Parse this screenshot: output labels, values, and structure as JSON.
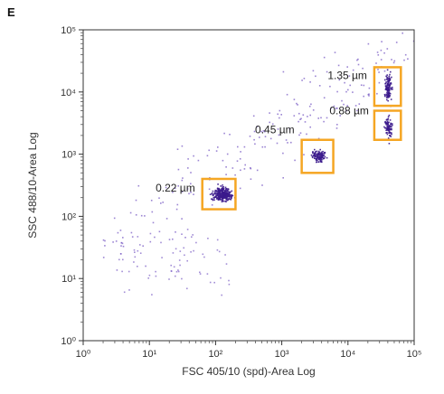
{
  "panel_label": "E",
  "chart_data": {
    "type": "scatter",
    "title": "",
    "xlabel": "FSC 405/10 (spd)-Area Log",
    "ylabel": "SSC 488/10-Area Log",
    "xscale": "log",
    "yscale": "log",
    "xlim": [
      1,
      100000
    ],
    "ylim": [
      1,
      100000
    ],
    "x_ticks": [
      {
        "value": 1,
        "label": "10⁰"
      },
      {
        "value": 10,
        "label": "10¹"
      },
      {
        "value": 100,
        "label": "10²"
      },
      {
        "value": 1000,
        "label": "10³"
      },
      {
        "value": 10000,
        "label": "10⁴"
      },
      {
        "value": 100000,
        "label": "10⁵"
      }
    ],
    "y_ticks": [
      {
        "value": 1,
        "label": "10⁰"
      },
      {
        "value": 10,
        "label": "10¹"
      },
      {
        "value": 100,
        "label": "10²"
      },
      {
        "value": 1000,
        "label": "10³"
      },
      {
        "value": 10000,
        "label": "10⁴"
      },
      {
        "value": 100000,
        "label": "10⁵"
      }
    ],
    "grid": false,
    "colors": {
      "points": "#7a5cc4",
      "dense": "#3b1a8c",
      "gate": "#f5a623"
    },
    "gates": [
      {
        "label": "0.22 µm",
        "x_range": [
          63,
          200
        ],
        "y_range": [
          130,
          400
        ]
      },
      {
        "label": "0.45 µm",
        "x_range": [
          2000,
          6000
        ],
        "y_range": [
          500,
          1700
        ]
      },
      {
        "label": "0.88 µm",
        "x_range": [
          25000,
          63000
        ],
        "y_range": [
          1700,
          5000
        ]
      },
      {
        "label": "1.35 µm",
        "x_range": [
          25000,
          63000
        ],
        "y_range": [
          6000,
          25000
        ]
      }
    ],
    "populations": [
      {
        "x": 125,
        "y": 230
      },
      {
        "x": 3500,
        "y": 950
      },
      {
        "x": 40000,
        "y": 2800
      },
      {
        "x": 40000,
        "y": 12000
      }
    ]
  }
}
